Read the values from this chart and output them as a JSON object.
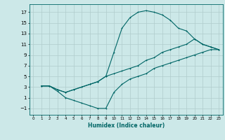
{
  "xlabel": "Humidex (Indice chaleur)",
  "xlim": [
    -0.5,
    23.5
  ],
  "ylim": [
    -2.2,
    18.5
  ],
  "xticks": [
    0,
    1,
    2,
    3,
    4,
    5,
    6,
    7,
    8,
    9,
    10,
    11,
    12,
    13,
    14,
    15,
    16,
    17,
    18,
    19,
    20,
    21,
    22,
    23
  ],
  "yticks": [
    -1,
    1,
    3,
    5,
    7,
    9,
    11,
    13,
    15,
    17
  ],
  "bg_color": "#cce8e8",
  "grid_color": "#b0cccc",
  "line_color": "#006666",
  "line1_x": [
    1,
    2,
    3,
    4,
    5,
    6,
    7,
    8,
    9,
    10,
    11,
    12,
    13,
    14,
    15,
    16,
    17,
    18,
    19,
    20,
    21,
    22,
    23
  ],
  "line1_y": [
    3.2,
    3.2,
    2.5,
    2.0,
    2.5,
    3.0,
    3.5,
    4.0,
    5.0,
    9.5,
    14.0,
    16.0,
    17.0,
    17.3,
    17.0,
    16.5,
    15.5,
    14.0,
    13.5,
    12.0,
    11.0,
    10.5,
    10.0
  ],
  "line2_x": [
    1,
    2,
    3,
    4,
    5,
    6,
    7,
    8,
    9,
    10,
    11,
    12,
    13,
    14,
    15,
    16,
    17,
    18,
    19,
    20,
    21,
    22,
    23
  ],
  "line2_y": [
    3.2,
    3.2,
    2.5,
    2.0,
    2.5,
    3.0,
    3.5,
    4.0,
    5.0,
    5.5,
    6.0,
    6.5,
    7.0,
    8.0,
    8.5,
    9.5,
    10.0,
    10.5,
    11.0,
    12.0,
    11.0,
    10.5,
    10.0
  ],
  "line3_x": [
    1,
    2,
    3,
    4,
    5,
    6,
    7,
    8,
    9,
    10,
    11,
    12,
    13,
    14,
    15,
    16,
    17,
    18,
    19,
    20,
    21,
    22,
    23
  ],
  "line3_y": [
    3.2,
    3.2,
    2.2,
    1.0,
    0.5,
    0.0,
    -0.5,
    -1.0,
    -1.0,
    2.0,
    3.5,
    4.5,
    5.0,
    5.5,
    6.5,
    7.0,
    7.5,
    8.0,
    8.5,
    9.0,
    9.5,
    10.0,
    10.0
  ]
}
